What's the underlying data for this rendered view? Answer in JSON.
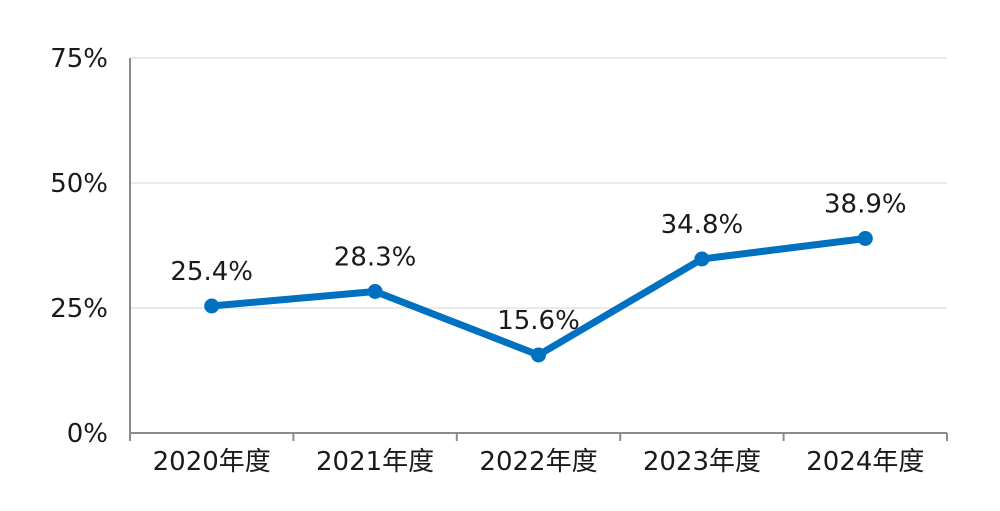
{
  "chart_data": {
    "type": "line",
    "categories": [
      "2020年度",
      "2021年度",
      "2022年度",
      "2023年度",
      "2024年度"
    ],
    "series": [
      {
        "values": [
          25.4,
          28.3,
          15.6,
          34.8,
          38.9
        ],
        "labels": [
          "25.4%",
          "28.3%",
          "15.6%",
          "34.8%",
          "38.9%"
        ]
      }
    ],
    "ylim": [
      0,
      75
    ],
    "yticks": [
      0,
      25,
      50,
      75
    ],
    "ytick_labels": [
      "0%",
      "25%",
      "50%",
      "75%"
    ],
    "grid": true,
    "colors": {
      "line": "#0070C0",
      "grid": "#e3e3e3",
      "axis": "#8c8c8c"
    }
  }
}
